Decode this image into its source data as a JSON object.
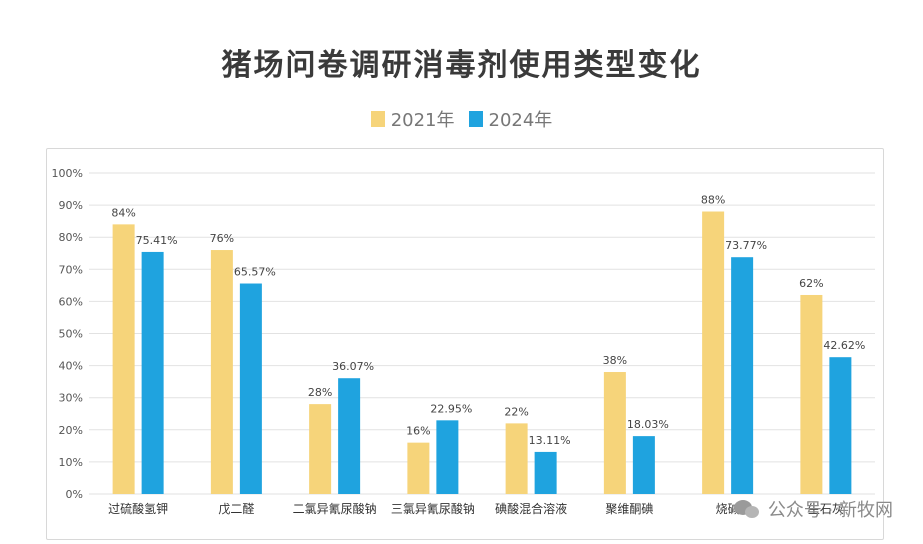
{
  "chart_data": {
    "type": "bar",
    "title": "猪场问卷调研消毒剂使用类型变化",
    "categories": [
      "过硫酸氢钾",
      "戊二醛",
      "二氯异氰尿酸钠",
      "三氯异氰尿酸钠",
      "碘酸混合溶液",
      "聚维酮碘",
      "烧碱",
      "生石灰"
    ],
    "series": [
      {
        "name": "2021年",
        "values": [
          84,
          76,
          28,
          16,
          22,
          38,
          88,
          62
        ],
        "labels": [
          "84%",
          "76%",
          "28%",
          "16%",
          "22%",
          "38%",
          "88%",
          "62%"
        ]
      },
      {
        "name": "2024年",
        "values": [
          75.41,
          65.57,
          36.07,
          22.95,
          13.11,
          18.03,
          73.77,
          42.62
        ],
        "labels": [
          "75.41%",
          "65.57%",
          "36.07%",
          "22.95%",
          "13.11%",
          "18.03%",
          "73.77%",
          "42.62%"
        ]
      }
    ],
    "ylim": [
      0,
      100
    ],
    "yticks": [
      "0%",
      "10%",
      "20%",
      "30%",
      "40%",
      "50%",
      "60%",
      "70%",
      "80%",
      "90%",
      "100%"
    ],
    "grid": true,
    "legend": "top-center",
    "colors": {
      "series_2021": "#f6d47a",
      "series_2024": "#1fa3df"
    }
  },
  "watermark": {
    "text": "公众号 · 新牧网"
  }
}
